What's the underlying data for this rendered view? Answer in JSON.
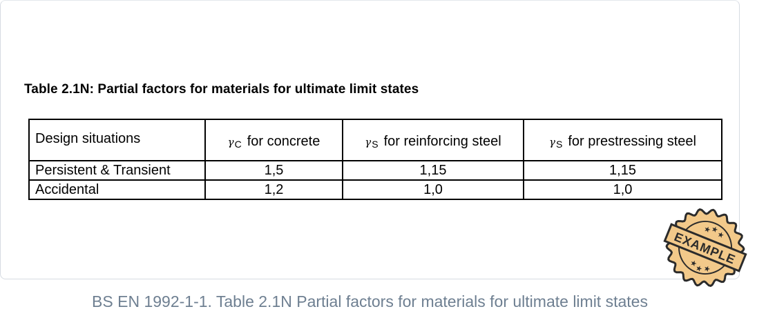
{
  "document": {
    "table_title": "Table 2.1N:  Partial factors for materials for ultimate limit states",
    "table": {
      "headers": {
        "design": "Design situations",
        "concrete": {
          "symbol": "γ",
          "sub": "C",
          "text": "for concrete"
        },
        "reinforcing": {
          "symbol": "γ",
          "sub": "S",
          "text": "for reinforcing steel"
        },
        "prestressing": {
          "symbol": "γ",
          "sub": "S",
          "text": "for prestressing steel"
        }
      },
      "rows": [
        {
          "situation": "Persistent & Transient",
          "concrete": "1,5",
          "reinforcing": "1,15",
          "prestressing": "1,15"
        },
        {
          "situation": "Accidental",
          "concrete": "1,2",
          "reinforcing": "1,0",
          "prestressing": "1,0"
        }
      ]
    },
    "caption": "BS EN 1992-1-1. Table 2.1N Partial factors for materials for ultimate limit states"
  },
  "stamp": {
    "label": "EXAMPLE",
    "colors": {
      "fill": "#f2c98a",
      "stroke": "#2b2b2b",
      "accent": "#e8b46a"
    }
  },
  "colors": {
    "caption": "#6e7f91",
    "card_border": "#d6dbe2"
  }
}
